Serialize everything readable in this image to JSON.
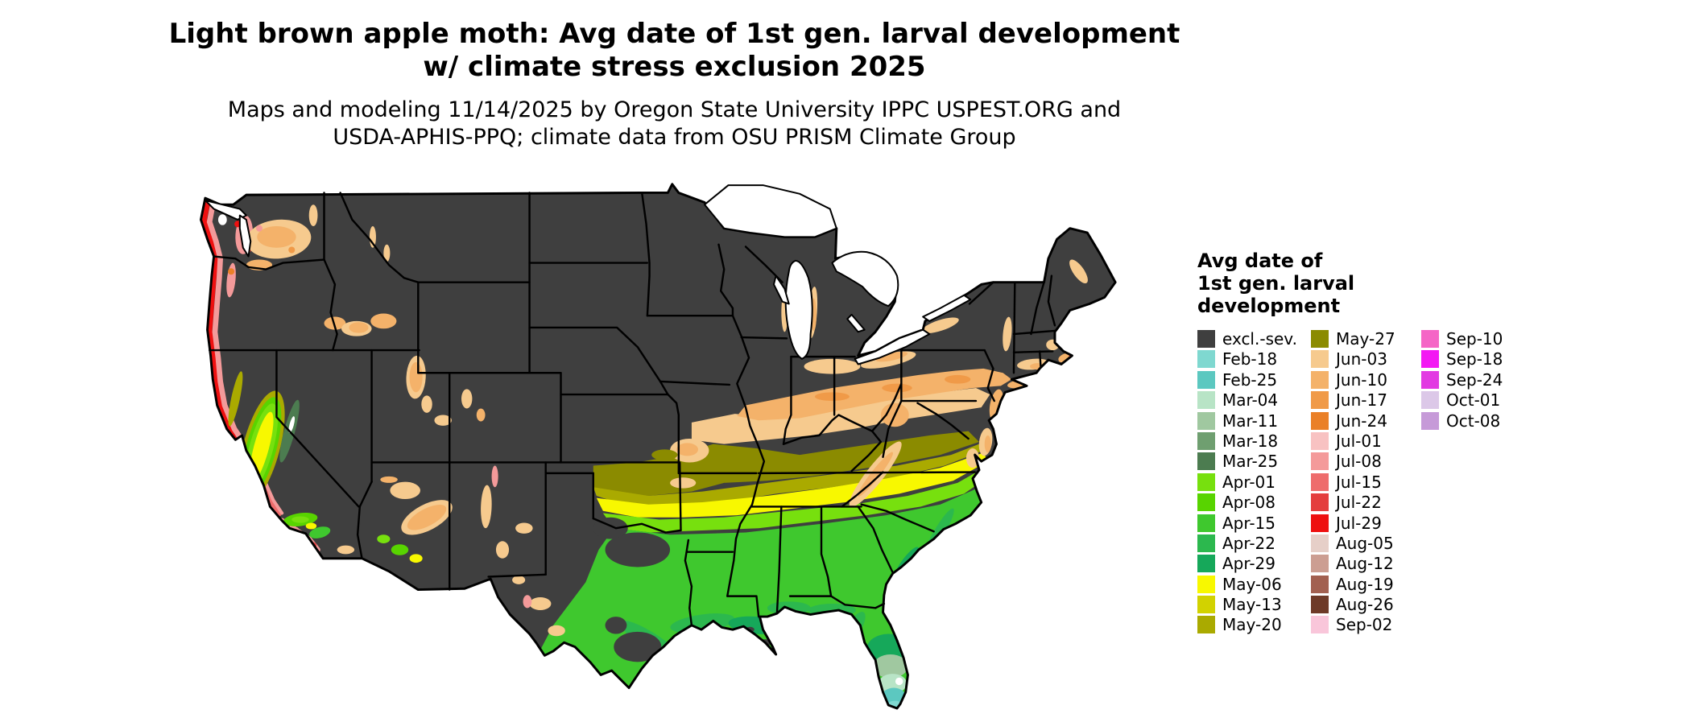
{
  "header": {
    "title_line1": "Light brown apple moth: Avg date of 1st gen. larval development",
    "title_line2": "w/ climate stress exclusion 2025",
    "subtitle_line1": "Maps and modeling 11/14/2025 by Oregon State University IPPC USPEST.ORG and",
    "subtitle_line2": "USDA-APHIS-PPQ; climate data from OSU PRISM Climate Group"
  },
  "legend": {
    "title_lines": [
      "Avg date of",
      "1st gen. larval",
      "development"
    ],
    "columns": [
      {
        "items": [
          {
            "label": "excl.-sev.",
            "color": "#3f3f3f"
          },
          {
            "label": "Feb-18",
            "color": "#7fd8d0"
          },
          {
            "label": "Feb-25",
            "color": "#5cc8c0"
          },
          {
            "label": "Mar-04",
            "color": "#b8e4c6"
          },
          {
            "label": "Mar-11",
            "color": "#a0c8a0"
          },
          {
            "label": "Mar-18",
            "color": "#6f9f70"
          },
          {
            "label": "Mar-25",
            "color": "#4c7c50"
          },
          {
            "label": "Apr-01",
            "color": "#77e00e"
          },
          {
            "label": "Apr-08",
            "color": "#58d400"
          },
          {
            "label": "Apr-15",
            "color": "#3fc82e"
          },
          {
            "label": "Apr-22",
            "color": "#2cb84e"
          },
          {
            "label": "Apr-29",
            "color": "#16a85a"
          },
          {
            "label": "May-06",
            "color": "#f8f800"
          },
          {
            "label": "May-13",
            "color": "#d2d200"
          },
          {
            "label": "May-20",
            "color": "#aaaa00"
          }
        ]
      },
      {
        "items": [
          {
            "label": "May-27",
            "color": "#8b8b00"
          },
          {
            "label": "Jun-03",
            "color": "#f6ca8e"
          },
          {
            "label": "Jun-10",
            "color": "#f4b26a"
          },
          {
            "label": "Jun-17",
            "color": "#f09a48"
          },
          {
            "label": "Jun-24",
            "color": "#ea8028"
          },
          {
            "label": "Jul-01",
            "color": "#f8c2c2"
          },
          {
            "label": "Jul-08",
            "color": "#f49a9a"
          },
          {
            "label": "Jul-15",
            "color": "#ee6c6c"
          },
          {
            "label": "Jul-22",
            "color": "#e43e3e"
          },
          {
            "label": "Jul-29",
            "color": "#ee1010"
          },
          {
            "label": "Aug-05",
            "color": "#e6cfc8"
          },
          {
            "label": "Aug-12",
            "color": "#cc9e92"
          },
          {
            "label": "Aug-19",
            "color": "#a26050"
          },
          {
            "label": "Aug-26",
            "color": "#6e3a28"
          },
          {
            "label": "Sep-02",
            "color": "#f9c6da"
          }
        ]
      },
      {
        "items": [
          {
            "label": "Sep-10",
            "color": "#f566c6"
          },
          {
            "label": "Sep-18",
            "color": "#f318f3"
          },
          {
            "label": "Sep-24",
            "color": "#e23ae2"
          },
          {
            "label": "Oct-01",
            "color": "#dcc8e8"
          },
          {
            "label": "Oct-08",
            "color": "#c69ad8"
          }
        ]
      }
    ]
  },
  "map": {
    "palette": {
      "base": "#3f3f3f",
      "water": "#ffffff",
      "border": "#000000",
      "feb18": "#7fd8d0",
      "feb25": "#5cc8c0",
      "mar04": "#b8e4c6",
      "mar11": "#a0c8a0",
      "mar18": "#6f9f70",
      "mar25": "#4c7c50",
      "apr01": "#77e00e",
      "apr08": "#58d400",
      "apr15": "#3fc82e",
      "apr22": "#2cb84e",
      "apr29": "#16a85a",
      "may06": "#f8f800",
      "may13": "#d2d200",
      "may20": "#aaaa00",
      "may27": "#8b8b00",
      "jun03": "#f6ca8e",
      "jun10": "#f4b26a",
      "jun17": "#f09a48",
      "jun24": "#ea8028",
      "jul01": "#f8c2c2",
      "jul08": "#f49a9a",
      "jul15": "#ee6c6c",
      "jul22": "#e43e3e",
      "jul29": "#ee1010",
      "aug05": "#e6cfc8",
      "aug12": "#cc9e92",
      "aug19": "#a26050",
      "aug26": "#6e3a28",
      "sep02": "#f9c6da",
      "sep10": "#f566c6",
      "sep18": "#f318f3",
      "sep24": "#e23ae2",
      "oct01": "#dcc8e8",
      "oct08": "#c69ad8"
    }
  }
}
